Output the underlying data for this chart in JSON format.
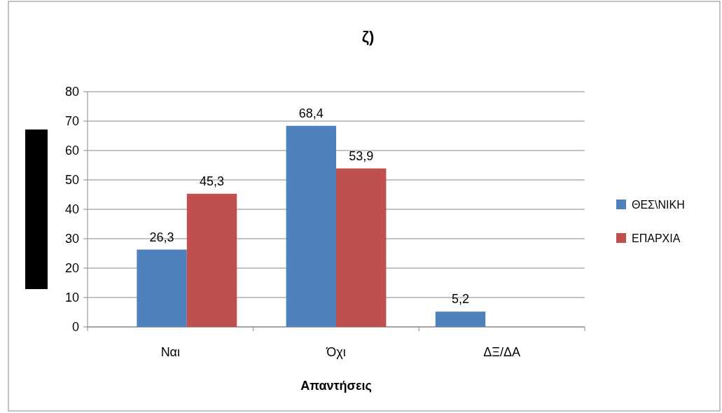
{
  "chart_data": {
    "type": "bar",
    "title": "ζ)",
    "xlabel": "Απαντήσεις",
    "categories": [
      "Ναι",
      "Όχι",
      "ΔΞ/ΔΑ"
    ],
    "series": [
      {
        "name": "ΘΕΣ\\ΝΙΚΗ",
        "color": "#4f81bd",
        "values": [
          26.3,
          68.4,
          5.2
        ],
        "value_labels": [
          "26,3",
          "68,4",
          "5,2"
        ]
      },
      {
        "name": "ΕΠΑΡΧΙΑ",
        "color": "#c0504d",
        "values": [
          45.3,
          53.9,
          null
        ],
        "value_labels": [
          "45,3",
          "53,9",
          null
        ]
      }
    ],
    "ylim": [
      0,
      80
    ],
    "yticks": [
      0,
      10,
      20,
      30,
      40,
      50,
      60,
      70,
      80
    ],
    "grid": "y",
    "legend": "right"
  }
}
